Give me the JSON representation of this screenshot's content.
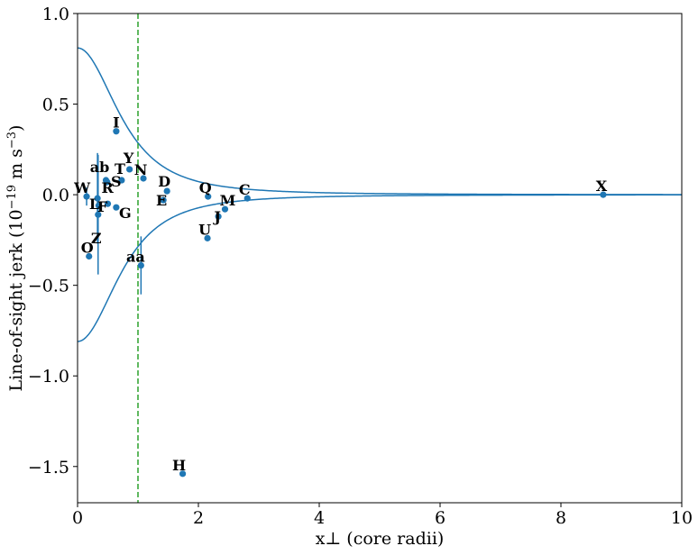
{
  "chart_data": {
    "type": "scatter",
    "xlabel": "x⊥ (core radii)",
    "ylabel_main": "Line-of-sight jerk (10",
    "ylabel_exp1": "−19",
    "ylabel_mid": " m s",
    "ylabel_exp2": "−3",
    "ylabel_end": ")",
    "xlim": [
      0,
      10
    ],
    "ylim": [
      -1.7,
      1.0
    ],
    "xticks": [
      0,
      2,
      4,
      6,
      8,
      10
    ],
    "xtick_labels": [
      "0",
      "2",
      "4",
      "6",
      "8",
      "10"
    ],
    "yticks": [
      -1.5,
      -1.0,
      -0.5,
      0.0,
      0.5,
      1.0
    ],
    "ytick_labels": [
      "−1.5",
      "−1.0",
      "−0.5",
      "0.0",
      "0.5",
      "1.0"
    ],
    "vline_x": 1.0,
    "envelope": {
      "amplitude": 0.81,
      "core": 1.0
    },
    "colors": {
      "points": "#1f77b4",
      "curve": "#1f77b4",
      "vline": "#2ca02c"
    },
    "points": [
      {
        "label": "W",
        "x": 0.15,
        "y": -0.01,
        "yerr": 0.05
      },
      {
        "label": "R",
        "x": 0.33,
        "y": -0.02,
        "yerr": 0.25
      },
      {
        "label": "ab",
        "x": 0.47,
        "y": 0.08,
        "yerr": 0.0
      },
      {
        "label": "L",
        "x": 0.35,
        "y": -0.06,
        "yerr": 0.0
      },
      {
        "label": "F",
        "x": 0.5,
        "y": -0.05,
        "yerr": 0.0
      },
      {
        "label": "S",
        "x": 0.49,
        "y": 0.07,
        "yerr": 0.0
      },
      {
        "label": "Z",
        "x": 0.34,
        "y": -0.11,
        "yerr": 0.33
      },
      {
        "label": "O",
        "x": 0.19,
        "y": -0.34,
        "yerr": 0.0
      },
      {
        "label": "I",
        "x": 0.64,
        "y": 0.35,
        "yerr": 0.0
      },
      {
        "label": "T",
        "x": 0.73,
        "y": 0.08,
        "yerr": 0.0
      },
      {
        "label": "Y",
        "x": 0.86,
        "y": 0.14,
        "yerr": 0.0
      },
      {
        "label": "G",
        "x": 0.64,
        "y": -0.07,
        "yerr": 0.0
      },
      {
        "label": "N",
        "x": 1.09,
        "y": 0.09,
        "yerr": 0.0
      },
      {
        "label": "aa",
        "x": 1.05,
        "y": -0.39,
        "yerr": 0.16
      },
      {
        "label": "D",
        "x": 1.48,
        "y": 0.02,
        "yerr": 0.0
      },
      {
        "label": "E",
        "x": 1.42,
        "y": -0.03,
        "yerr": 0.0
      },
      {
        "label": "H",
        "x": 1.74,
        "y": -1.54,
        "yerr": 0.0
      },
      {
        "label": "Q",
        "x": 2.16,
        "y": -0.01,
        "yerr": 0.0
      },
      {
        "label": "U",
        "x": 2.15,
        "y": -0.24,
        "yerr": 0.0
      },
      {
        "label": "M",
        "x": 2.44,
        "y": -0.08,
        "yerr": 0.0
      },
      {
        "label": "J",
        "x": 2.33,
        "y": -0.12,
        "yerr": 0.0
      },
      {
        "label": "C",
        "x": 2.81,
        "y": -0.02,
        "yerr": 0.0
      },
      {
        "label": "X",
        "x": 8.7,
        "y": 0.0,
        "yerr": 0.0
      }
    ]
  }
}
